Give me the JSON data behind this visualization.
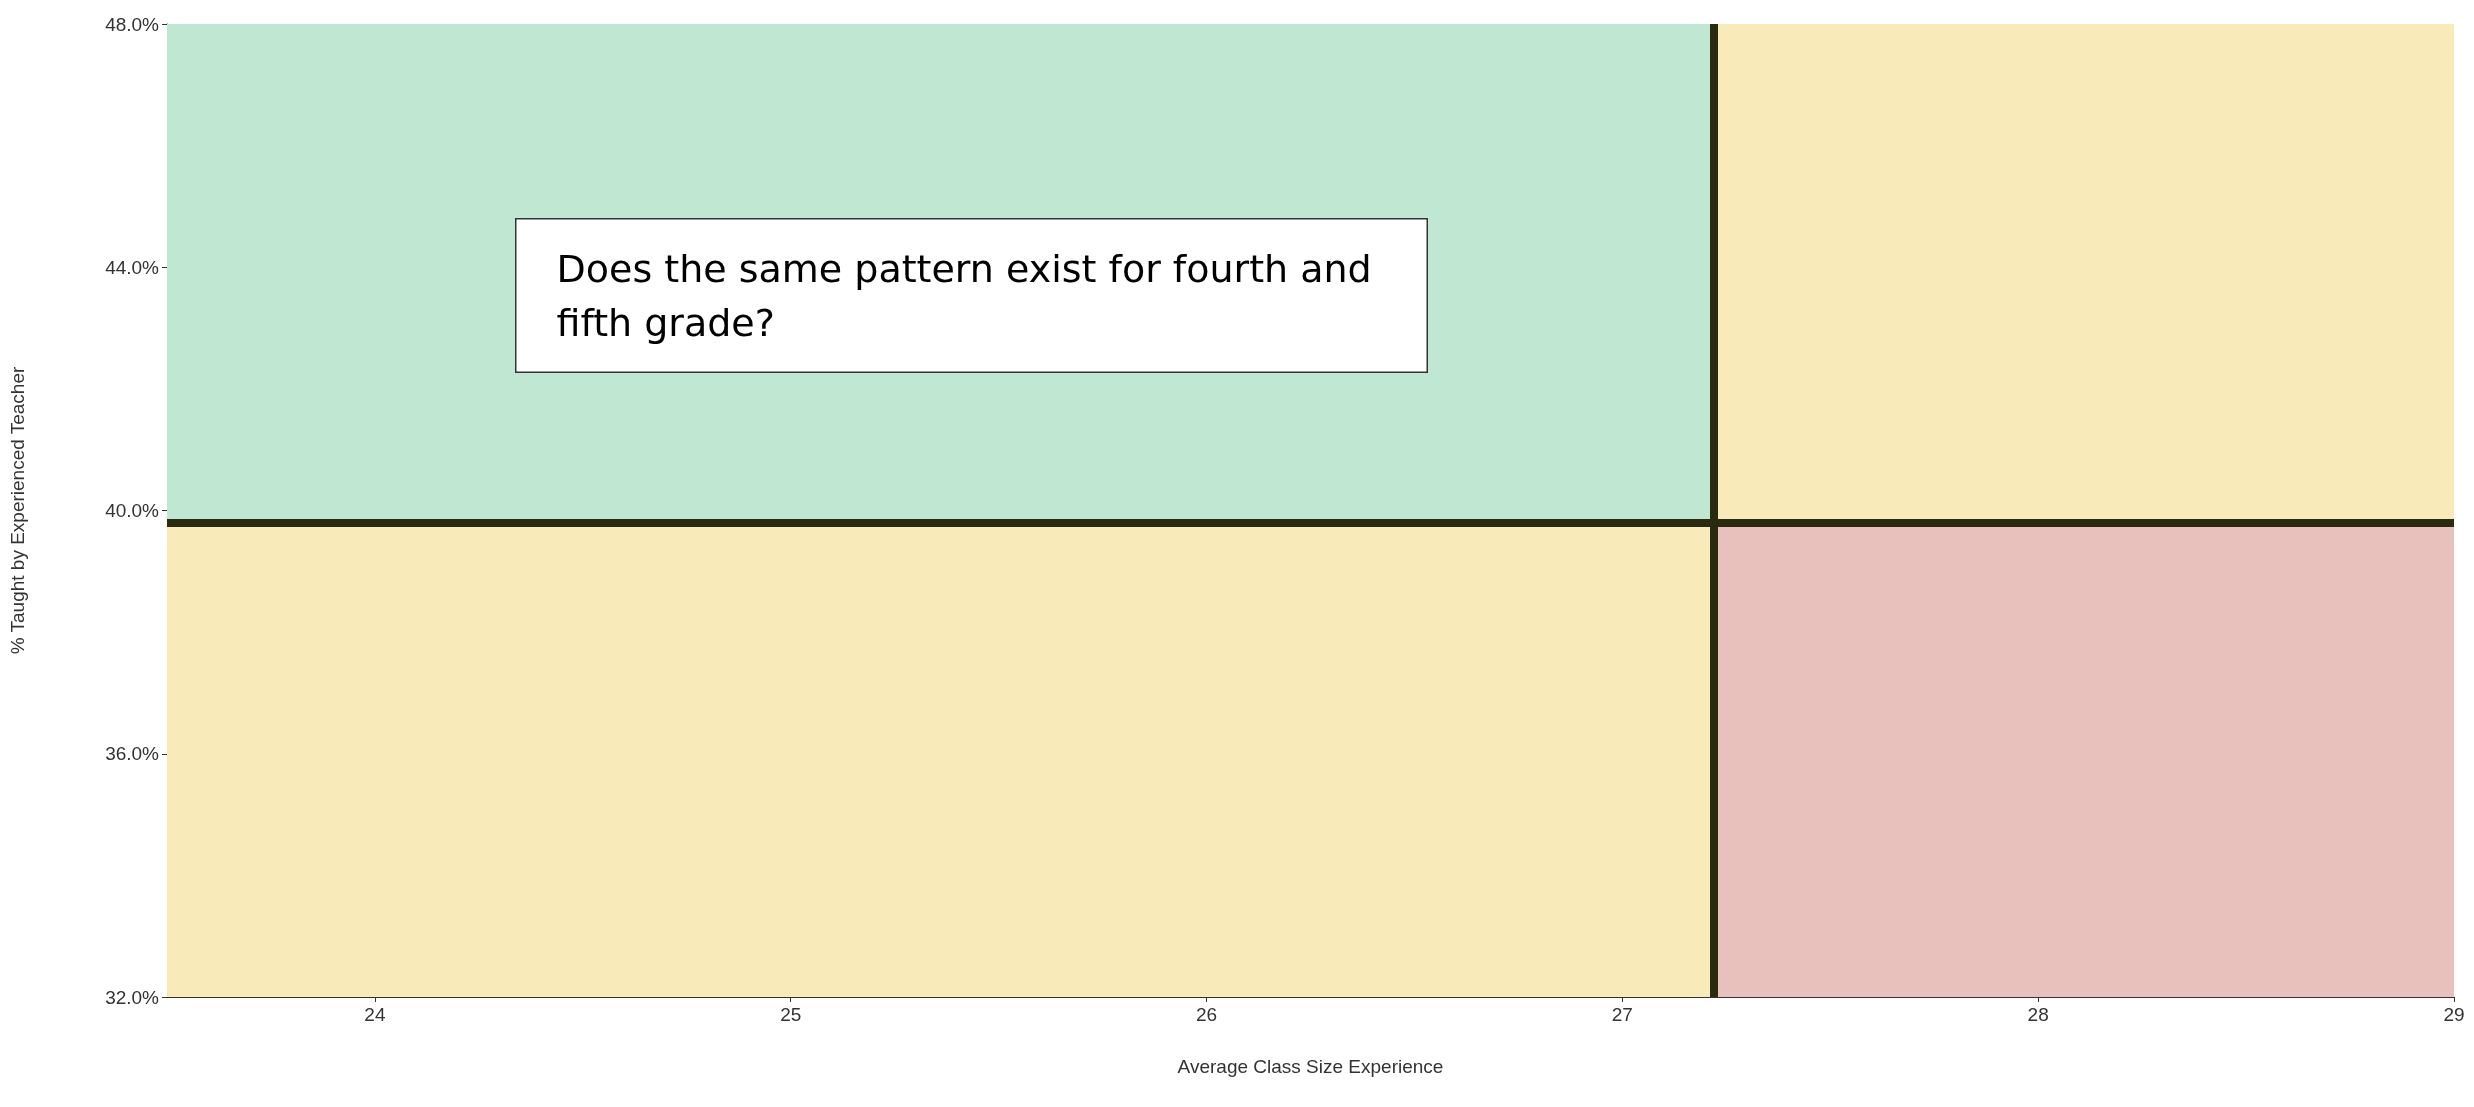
{
  "chart_data": {
    "type": "scatter",
    "xlabel": "Average Class Size Experience",
    "ylabel": "% Taught by Experienced Teacher",
    "xlim": [
      23.5,
      29
    ],
    "xticks": [
      24,
      25,
      26,
      27,
      28,
      29
    ],
    "ylim": [
      32,
      48
    ],
    "yticks": [
      {
        "value": 32,
        "label": "32.0%"
      },
      {
        "value": 36,
        "label": "36.0%"
      },
      {
        "value": 40,
        "label": "40.0%"
      },
      {
        "value": 44,
        "label": "44.0%"
      },
      {
        "value": 48,
        "label": "48.0%"
      }
    ],
    "grid": false,
    "bands": [
      {
        "axis": "x",
        "from": 23.5,
        "to": 27.22,
        "color": "#bfe7d1"
      },
      {
        "axis": "x",
        "from": 27.22,
        "to": 29,
        "color": "#e8c1bd"
      },
      {
        "axis": "y",
        "from": 39.8,
        "to": 48,
        "color": "#f8eab9"
      },
      {
        "axis": "y",
        "from": 32,
        "to": 39.8,
        "color": "#f8eab9"
      }
    ],
    "ref_lines": [
      {
        "axis": "x",
        "value": 27.22,
        "color": "#2a2a10"
      },
      {
        "axis": "y",
        "value": 39.8,
        "color": "#2a2a10"
      }
    ],
    "annotations": [
      "Does the same pattern exist for fourth and fifth grade?"
    ]
  }
}
